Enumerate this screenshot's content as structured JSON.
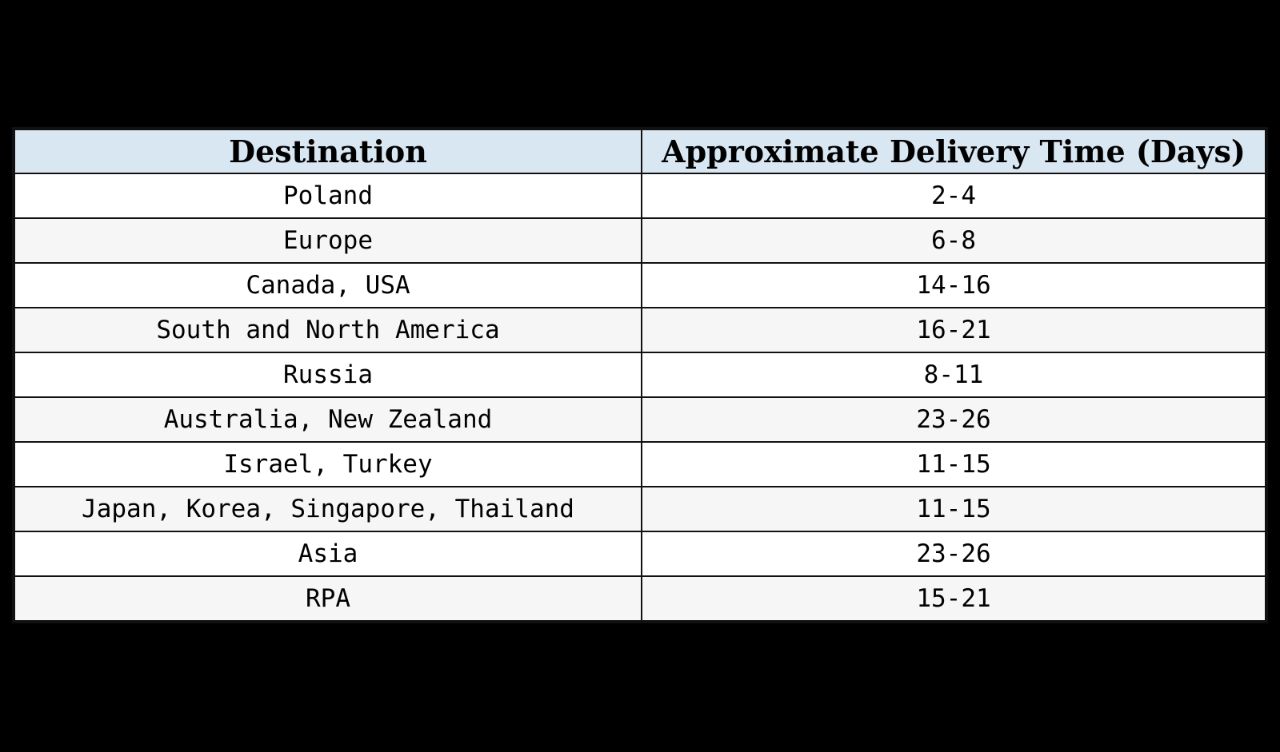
{
  "chart_data": {
    "type": "table",
    "columns": [
      "Destination",
      "Approximate Delivery Time (Days)"
    ],
    "rows": [
      [
        "Poland",
        "2-4"
      ],
      [
        "Europe",
        "6-8"
      ],
      [
        "Canada, USA",
        "14-16"
      ],
      [
        "South and North America",
        "16-21"
      ],
      [
        "Russia",
        "8-11"
      ],
      [
        "Australia, New Zealand",
        "23-26"
      ],
      [
        "Israel, Turkey",
        "11-15"
      ],
      [
        "Japan, Korea, Singapore, Thailand",
        "11-15"
      ],
      [
        "Asia",
        "23-26"
      ],
      [
        "RPA",
        "15-21"
      ]
    ],
    "colors": {
      "header_background": "#d9e7f3",
      "row_background": "#ffffff",
      "alt_row_background": "#f6f6f6",
      "page_background": "#000000"
    }
  }
}
